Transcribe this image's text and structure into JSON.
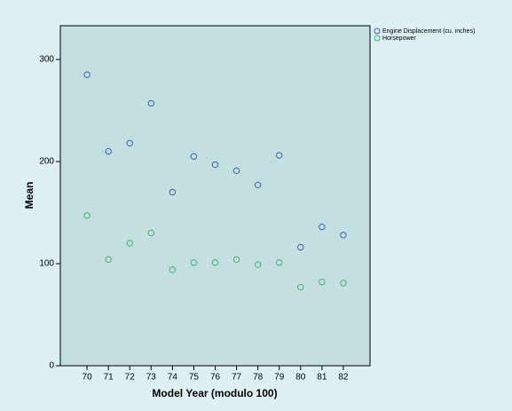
{
  "chart_data": {
    "type": "scatter",
    "x": [
      70,
      71,
      72,
      73,
      74,
      75,
      76,
      77,
      78,
      79,
      80,
      81,
      82
    ],
    "series": [
      {
        "name": "Engine Displacement (cu. inches)",
        "color": "#3a5fc4",
        "values": [
          285,
          210,
          218,
          257,
          170,
          205,
          197,
          191,
          177,
          206,
          116,
          136,
          128
        ]
      },
      {
        "name": "Horsepower",
        "color": "#3cb86a",
        "values": [
          147,
          104,
          120,
          130,
          94,
          101,
          101,
          104,
          99,
          101,
          77,
          82,
          81
        ]
      }
    ],
    "xlabel": "Model Year (modulo 100)",
    "ylabel": "Mean",
    "xlim": [
      68.75,
      83.25
    ],
    "xticks": [
      70,
      71,
      72,
      73,
      74,
      75,
      76,
      77,
      78,
      79,
      80,
      81,
      82
    ],
    "ylim": [
      0,
      333
    ],
    "yticks": [
      0,
      100,
      200,
      300
    ],
    "legend": "top-right"
  }
}
